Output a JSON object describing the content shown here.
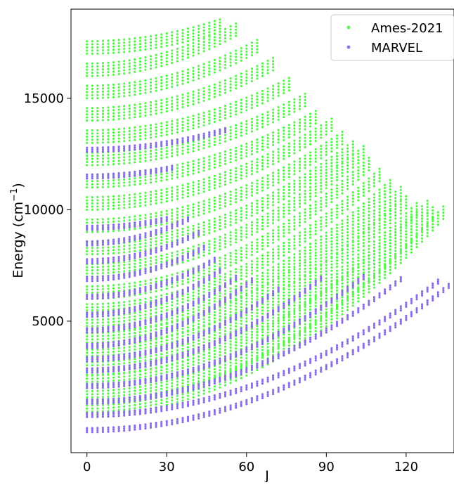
{
  "chart_data": {
    "type": "scatter",
    "title": "",
    "xlabel": "J",
    "ylabel_main": "Energy (cm",
    "ylabel_sup": "−1",
    "ylabel_close": ")",
    "xlim": [
      -6,
      138
    ],
    "ylim": [
      -900,
      19000
    ],
    "xticks": [
      0,
      30,
      60,
      90,
      120
    ],
    "yticks": [
      5000,
      10000,
      15000
    ],
    "grid": false,
    "legend_position": "top-right",
    "series": [
      {
        "name": "Ames-2021",
        "color": "#55f54a",
        "bands": [
          {
            "e0": 800,
            "jmax": 135,
            "emax": 9100
          },
          {
            "e0": 1300,
            "jmax": 131,
            "emax": 8550
          },
          {
            "e0": 2000,
            "jmax": 128,
            "emax": 8000
          },
          {
            "e0": 2600,
            "jmax": 125,
            "emax": 7400
          },
          {
            "e0": 3300,
            "jmax": 121,
            "emax": 7000
          },
          {
            "e0": 3900,
            "jmax": 118,
            "emax": 6700
          },
          {
            "e0": 4500,
            "jmax": 114,
            "emax": 6400
          },
          {
            "e0": 5200,
            "jmax": 110,
            "emax": 6200
          },
          {
            "e0": 6000,
            "jmax": 107,
            "emax": 6000
          },
          {
            "e0": 7000,
            "jmax": 104,
            "emax": 5400
          },
          {
            "e0": 8000,
            "jmax": 100,
            "emax": 4600
          },
          {
            "e0": 9000,
            "jmax": 97,
            "emax": 4100
          },
          {
            "e0": 10000,
            "jmax": 92,
            "emax": 3600
          },
          {
            "e0": 11000,
            "jmax": 87,
            "emax": 3000
          },
          {
            "e0": 12000,
            "jmax": 82,
            "emax": 2700
          },
          {
            "e0": 13000,
            "jmax": 76,
            "emax": 2400
          },
          {
            "e0": 14000,
            "jmax": 70,
            "emax": 2300
          },
          {
            "e0": 15000,
            "jmax": 64,
            "emax": 2100
          },
          {
            "e0": 16000,
            "jmax": 57,
            "emax": 1900
          },
          {
            "e0": 17000,
            "jmax": 50,
            "emax": 1000
          }
        ]
      },
      {
        "name": "MARVEL",
        "color": "#8a6ce6",
        "bands": [
          {
            "e0": 20,
            "jmax": 137,
            "emax": 6700
          },
          {
            "e0": 700,
            "jmax": 133,
            "emax": 6200
          },
          {
            "e0": 1300,
            "jmax": 118,
            "emax": 5600
          },
          {
            "e0": 2000,
            "jmax": 104,
            "emax": 5000
          },
          {
            "e0": 2700,
            "jmax": 88,
            "emax": 4200
          },
          {
            "e0": 3200,
            "jmax": 72,
            "emax": 3200
          },
          {
            "e0": 3800,
            "jmax": 62,
            "emax": 3000
          },
          {
            "e0": 4500,
            "jmax": 56,
            "emax": 2400
          },
          {
            "e0": 5200,
            "jmax": 50,
            "emax": 2000
          },
          {
            "e0": 6000,
            "jmax": 48,
            "emax": 1700
          },
          {
            "e0": 6800,
            "jmax": 45,
            "emax": 1500
          },
          {
            "e0": 7600,
            "jmax": 42,
            "emax": 1300
          },
          {
            "e0": 8400,
            "jmax": 38,
            "emax": 1100
          },
          {
            "e0": 9100,
            "jmax": 30,
            "emax": 400
          },
          {
            "e0": 11400,
            "jmax": 32,
            "emax": 400
          },
          {
            "e0": 12600,
            "jmax": 52,
            "emax": 900
          }
        ]
      }
    ]
  }
}
